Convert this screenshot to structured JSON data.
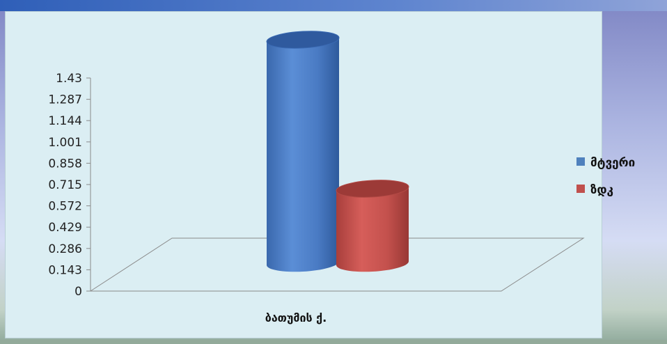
{
  "chart_data": {
    "type": "bar",
    "style": "3d-cylinder",
    "categories": [
      "ბათუმის ქ."
    ],
    "series": [
      {
        "name": "მტვერი",
        "values": [
          1.5
        ],
        "color": "#4f81bd"
      },
      {
        "name": "ზდკ",
        "values": [
          0.5
        ],
        "color": "#c0504d"
      }
    ],
    "y_ticks": [
      "0",
      "0.143",
      "0.286",
      "0.429",
      "0.572",
      "0.715",
      "0.858",
      "1.001",
      "1.144",
      "1.287",
      "1.43"
    ],
    "ylim": [
      0,
      1.43
    ],
    "legend_position": "right",
    "grid": false
  },
  "colors": {
    "panel": "#dbeef3",
    "axis": "#7a7a7a"
  }
}
